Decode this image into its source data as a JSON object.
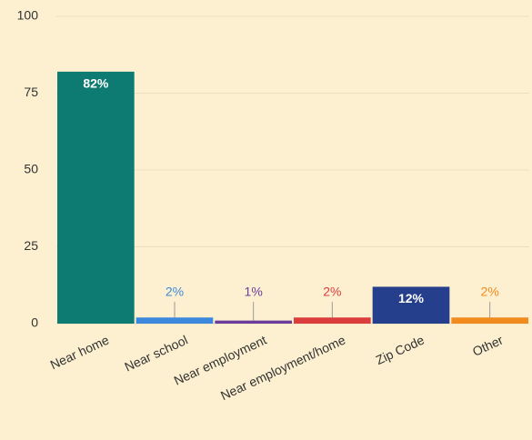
{
  "chart_data": {
    "type": "bar",
    "categories": [
      "Near home",
      "Near school",
      "Near employment",
      "Near employment/home",
      "Zip Code",
      "Other"
    ],
    "values": [
      82,
      2,
      1,
      2,
      12,
      2
    ],
    "value_labels": [
      "82%",
      "2%",
      "1%",
      "2%",
      "12%",
      "2%"
    ],
    "colors": [
      "#0d7b71",
      "#3b88dc",
      "#6b3c9b",
      "#db3d3d",
      "#263f8d",
      "#f28b1e"
    ],
    "ylim": [
      0,
      100
    ],
    "yticks": [
      0,
      25,
      50,
      75,
      100
    ],
    "grid": true
  }
}
